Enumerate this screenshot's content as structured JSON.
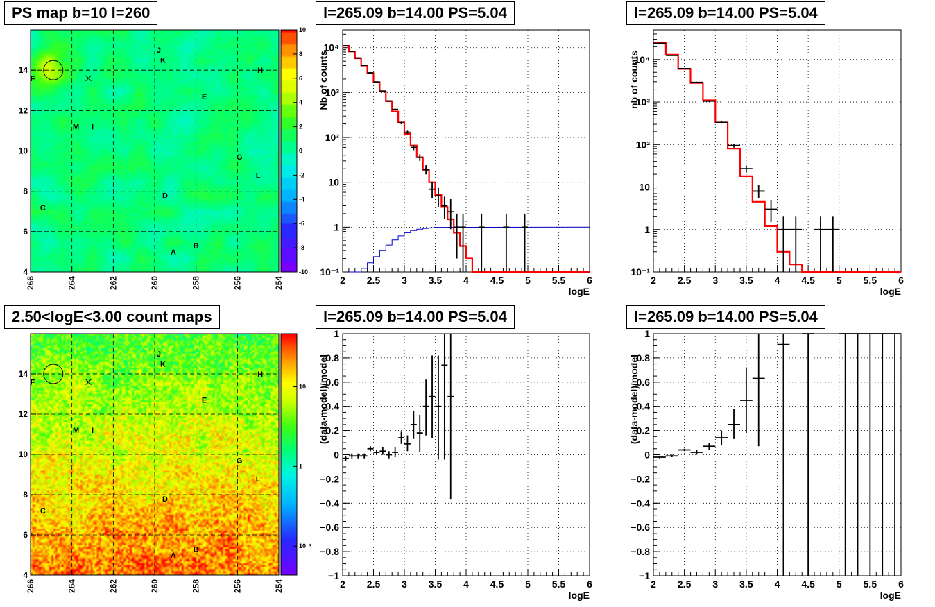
{
  "titles": {
    "map_top": "PS map b=10 l=260",
    "map_bottom": "2.50<logE<3.00 count maps",
    "spectrum_left": "l=265.09 b=14.00 PS=5.04",
    "spectrum_right": "l=265.09 b=14.00 PS=5.04",
    "residual_left": "l=265.09 b=14.00 PS=5.04",
    "residual_right": "l=265.09 b=14.00 PS=5.04"
  },
  "chart_data": [
    {
      "id": "ps_map",
      "type": "heatmap",
      "x_ticks": [
        "266",
        "264",
        "262",
        "260",
        "258",
        "256",
        "254"
      ],
      "y_ticks": [
        "4",
        "6",
        "8",
        "10",
        "12",
        "14"
      ],
      "xlim": [
        266,
        254
      ],
      "ylim": [
        4,
        16
      ],
      "z_range": [
        -10,
        10
      ],
      "colorbar_ticks": [
        "10",
        "8",
        "6",
        "4",
        "2",
        "0",
        "-2",
        "-4",
        "-6",
        "-8",
        "-10"
      ],
      "base_value": 0.3,
      "labels": [
        {
          "t": "J",
          "l": 259.8,
          "b": 15.0
        },
        {
          "t": "K",
          "l": 259.6,
          "b": 14.5
        },
        {
          "t": "H",
          "l": 254.9,
          "b": 14.0
        },
        {
          "t": "F",
          "l": 265.9,
          "b": 13.6
        },
        {
          "t": "E",
          "l": 257.6,
          "b": 12.7
        },
        {
          "t": "M",
          "l": 263.8,
          "b": 11.2
        },
        {
          "t": "I",
          "l": 263.0,
          "b": 11.2
        },
        {
          "t": "G",
          "l": 255.9,
          "b": 9.7
        },
        {
          "t": "L",
          "l": 255.0,
          "b": 8.8
        },
        {
          "t": "D",
          "l": 259.5,
          "b": 7.8
        },
        {
          "t": "C",
          "l": 265.4,
          "b": 7.2
        },
        {
          "t": "B",
          "l": 258.0,
          "b": 5.3
        },
        {
          "t": "A",
          "l": 259.1,
          "b": 5.0
        }
      ],
      "circle": {
        "l": 264.9,
        "b": 14.0
      },
      "cross": {
        "l": 263.2,
        "b": 13.6
      }
    },
    {
      "id": "count_map",
      "type": "heatmap",
      "x_ticks": [
        "266",
        "264",
        "262",
        "260",
        "258",
        "256",
        "254"
      ],
      "y_ticks": [
        "4",
        "6",
        "8",
        "10",
        "12",
        "14"
      ],
      "xlim": [
        266,
        254
      ],
      "ylim": [
        4,
        16
      ],
      "colorbar_ticks": [
        "10",
        "1",
        "10⁻¹"
      ],
      "labels": [
        {
          "t": "J",
          "l": 259.8,
          "b": 15.0
        },
        {
          "t": "K",
          "l": 259.6,
          "b": 14.5
        },
        {
          "t": "H",
          "l": 254.9,
          "b": 14.0
        },
        {
          "t": "F",
          "l": 265.9,
          "b": 13.6
        },
        {
          "t": "E",
          "l": 257.6,
          "b": 12.7
        },
        {
          "t": "M",
          "l": 263.8,
          "b": 11.2
        },
        {
          "t": "I",
          "l": 263.0,
          "b": 11.2
        },
        {
          "t": "G",
          "l": 255.9,
          "b": 9.7
        },
        {
          "t": "L",
          "l": 255.0,
          "b": 8.8
        },
        {
          "t": "D",
          "l": 259.5,
          "b": 7.8
        },
        {
          "t": "C",
          "l": 265.4,
          "b": 7.2
        },
        {
          "t": "B",
          "l": 258.0,
          "b": 5.3
        },
        {
          "t": "A",
          "l": 259.1,
          "b": 5.0
        }
      ],
      "circle": {
        "l": 264.9,
        "b": 14.0
      },
      "cross": {
        "l": 263.2,
        "b": 13.6
      }
    },
    {
      "id": "spectrum_left",
      "type": "line",
      "xlabel": "logE",
      "ylabel": "Nb of counts",
      "xlim": [
        2,
        6
      ],
      "ylim": [
        0.1,
        25000
      ],
      "log_y": true,
      "x_ticks": [
        "2",
        "2.5",
        "3",
        "3.5",
        "4",
        "4.5",
        "5",
        "5.5",
        "6"
      ],
      "y_ticks": [
        {
          "v": 0.1,
          "t": "10⁻¹"
        },
        {
          "v": 1,
          "t": "1"
        },
        {
          "v": 10,
          "t": "10"
        },
        {
          "v": 100,
          "t": "10²"
        },
        {
          "v": 1000,
          "t": "10³"
        },
        {
          "v": 10000,
          "t": "10⁴"
        }
      ],
      "bin_width": 0.1,
      "model": [
        {
          "x": 2.05,
          "y": 11000
        },
        {
          "x": 2.15,
          "y": 8200
        },
        {
          "x": 2.25,
          "y": 5800
        },
        {
          "x": 2.35,
          "y": 4000
        },
        {
          "x": 2.45,
          "y": 2700
        },
        {
          "x": 2.55,
          "y": 1700
        },
        {
          "x": 2.65,
          "y": 1050
        },
        {
          "x": 2.75,
          "y": 640
        },
        {
          "x": 2.85,
          "y": 380
        },
        {
          "x": 2.95,
          "y": 215
        },
        {
          "x": 3.05,
          "y": 120
        },
        {
          "x": 3.15,
          "y": 66
        },
        {
          "x": 3.25,
          "y": 36
        },
        {
          "x": 3.35,
          "y": 19
        },
        {
          "x": 3.45,
          "y": 10
        },
        {
          "x": 3.55,
          "y": 5.2
        },
        {
          "x": 3.65,
          "y": 2.8
        },
        {
          "x": 3.75,
          "y": 1.5
        },
        {
          "x": 3.85,
          "y": 0.75
        },
        {
          "x": 3.95,
          "y": 0.38
        },
        {
          "x": 4.05,
          "y": 0.2
        },
        {
          "x": 4.15,
          "y": 0.1
        },
        {
          "x": 4.25,
          "y": 0.1
        }
      ],
      "acceptance": [
        {
          "x": 2.15,
          "y": 0.1
        },
        {
          "x": 2.25,
          "y": 0.1
        },
        {
          "x": 2.35,
          "y": 0.12
        },
        {
          "x": 2.45,
          "y": 0.16
        },
        {
          "x": 2.55,
          "y": 0.22
        },
        {
          "x": 2.65,
          "y": 0.3
        },
        {
          "x": 2.75,
          "y": 0.4
        },
        {
          "x": 2.85,
          "y": 0.52
        },
        {
          "x": 2.95,
          "y": 0.64
        },
        {
          "x": 3.05,
          "y": 0.75
        },
        {
          "x": 3.15,
          "y": 0.84
        },
        {
          "x": 3.25,
          "y": 0.9
        },
        {
          "x": 3.35,
          "y": 0.94
        },
        {
          "x": 3.45,
          "y": 0.97
        },
        {
          "x": 3.55,
          "y": 0.99
        },
        {
          "x": 6.0,
          "y": 1.0
        }
      ],
      "data": [
        {
          "x": 2.05,
          "y": 11000,
          "lo": 10800,
          "hi": 11200
        },
        {
          "x": 2.15,
          "y": 8300,
          "lo": 8100,
          "hi": 8500
        },
        {
          "x": 2.25,
          "y": 5900,
          "lo": 5750,
          "hi": 6050
        },
        {
          "x": 2.35,
          "y": 4050,
          "lo": 3950,
          "hi": 4150
        },
        {
          "x": 2.45,
          "y": 2750,
          "lo": 2650,
          "hi": 2850
        },
        {
          "x": 2.55,
          "y": 1720,
          "lo": 1680,
          "hi": 1760
        },
        {
          "x": 2.65,
          "y": 1080,
          "lo": 1050,
          "hi": 1110
        },
        {
          "x": 2.75,
          "y": 650,
          "lo": 630,
          "hi": 670
        },
        {
          "x": 2.85,
          "y": 420,
          "lo": 400,
          "hi": 440
        },
        {
          "x": 2.95,
          "y": 210,
          "lo": 196,
          "hi": 224
        },
        {
          "x": 3.05,
          "y": 130,
          "lo": 119,
          "hi": 141
        },
        {
          "x": 3.15,
          "y": 60,
          "lo": 52,
          "hi": 68
        },
        {
          "x": 3.25,
          "y": 36,
          "lo": 30,
          "hi": 42
        },
        {
          "x": 3.35,
          "y": 19,
          "lo": 15,
          "hi": 24
        },
        {
          "x": 3.45,
          "y": 7,
          "lo": 4.5,
          "hi": 10
        },
        {
          "x": 3.55,
          "y": 5,
          "lo": 2.8,
          "hi": 7.5
        },
        {
          "x": 3.65,
          "y": 3,
          "lo": 1.5,
          "hi": 4.8
        },
        {
          "x": 3.75,
          "y": 2.2,
          "lo": 0.9,
          "hi": 4.2
        },
        {
          "x": 3.85,
          "y": 1,
          "lo": 0.2,
          "hi": 2
        },
        {
          "x": 3.95,
          "y": 1,
          "lo": 0.1,
          "hi": 2
        },
        {
          "x": 4.25,
          "y": 1,
          "lo": 0.1,
          "hi": 2
        },
        {
          "x": 4.65,
          "y": 1,
          "lo": 0.1,
          "hi": 2
        },
        {
          "x": 4.95,
          "y": 1,
          "lo": 0.1,
          "hi": 2
        }
      ]
    },
    {
      "id": "spectrum_right",
      "type": "line",
      "xlabel": "logE",
      "ylabel": "nb of counts",
      "xlim": [
        2,
        6
      ],
      "ylim": [
        0.1,
        50000
      ],
      "log_y": true,
      "x_ticks": [
        "2",
        "2.5",
        "3",
        "3.5",
        "4",
        "4.5",
        "5",
        "5.5",
        "6"
      ],
      "y_ticks": [
        {
          "v": 0.1,
          "t": "10⁻¹"
        },
        {
          "v": 1,
          "t": "1"
        },
        {
          "v": 10,
          "t": "10"
        },
        {
          "v": 100,
          "t": "10²"
        },
        {
          "v": 1000,
          "t": "10³"
        },
        {
          "v": 10000,
          "t": "10⁴"
        }
      ],
      "bin_width": 0.2,
      "model": [
        {
          "x": 2.1,
          "y": 25000
        },
        {
          "x": 2.3,
          "y": 13000
        },
        {
          "x": 2.5,
          "y": 6000
        },
        {
          "x": 2.7,
          "y": 2800
        },
        {
          "x": 2.9,
          "y": 1100
        },
        {
          "x": 3.1,
          "y": 330
        },
        {
          "x": 3.3,
          "y": 80
        },
        {
          "x": 3.5,
          "y": 18
        },
        {
          "x": 3.7,
          "y": 4.5
        },
        {
          "x": 3.9,
          "y": 1.2
        },
        {
          "x": 4.1,
          "y": 0.3
        },
        {
          "x": 4.3,
          "y": 0.15
        },
        {
          "x": 4.5,
          "y": 0.1
        }
      ],
      "data": [
        {
          "x": 2.1,
          "y": 24000,
          "lo": 23500,
          "hi": 24500
        },
        {
          "x": 2.3,
          "y": 12500,
          "lo": 12200,
          "hi": 12800
        },
        {
          "x": 2.5,
          "y": 6100,
          "lo": 5900,
          "hi": 6300
        },
        {
          "x": 2.7,
          "y": 2900,
          "lo": 2800,
          "hi": 3000
        },
        {
          "x": 2.9,
          "y": 1050,
          "lo": 1000,
          "hi": 1100
        },
        {
          "x": 3.1,
          "y": 330,
          "lo": 310,
          "hi": 350
        },
        {
          "x": 3.3,
          "y": 95,
          "lo": 85,
          "hi": 105
        },
        {
          "x": 3.5,
          "y": 27,
          "lo": 22,
          "hi": 32
        },
        {
          "x": 3.7,
          "y": 8,
          "lo": 5.5,
          "hi": 11
        },
        {
          "x": 3.9,
          "y": 3,
          "lo": 1.5,
          "hi": 4.8
        },
        {
          "x": 4.1,
          "y": 1,
          "lo": 0.1,
          "hi": 2
        },
        {
          "x": 4.3,
          "y": 1,
          "lo": 0.1,
          "hi": 2
        },
        {
          "x": 4.7,
          "y": 1,
          "lo": 0.1,
          "hi": 2
        },
        {
          "x": 4.9,
          "y": 1,
          "lo": 0.1,
          "hi": 2
        }
      ]
    },
    {
      "id": "residual_left",
      "type": "scatter",
      "xlabel": "logE",
      "ylabel": "(data-model)/model",
      "xlim": [
        2,
        6
      ],
      "ylim": [
        -1,
        1
      ],
      "x_ticks": [
        "2",
        "2.5",
        "3",
        "3.5",
        "4",
        "4.5",
        "5",
        "5.5",
        "6"
      ],
      "y_ticks": [
        "−1",
        "−0.8",
        "−0.6",
        "−0.4",
        "−0.2",
        "0",
        "0.2",
        "0.4",
        "0.6",
        "0.8",
        "1"
      ],
      "bin_width": 0.1,
      "data": [
        {
          "x": 2.05,
          "y": -0.03,
          "lo": -0.05,
          "hi": -0.01
        },
        {
          "x": 2.15,
          "y": -0.01,
          "lo": -0.03,
          "hi": 0.01
        },
        {
          "x": 2.25,
          "y": -0.01,
          "lo": -0.03,
          "hi": 0.01
        },
        {
          "x": 2.35,
          "y": -0.01,
          "lo": -0.03,
          "hi": 0.01
        },
        {
          "x": 2.45,
          "y": 0.05,
          "lo": 0.03,
          "hi": 0.07
        },
        {
          "x": 2.55,
          "y": 0.02,
          "lo": 0.0,
          "hi": 0.04
        },
        {
          "x": 2.65,
          "y": 0.03,
          "lo": 0.0,
          "hi": 0.06
        },
        {
          "x": 2.75,
          "y": 0.0,
          "lo": -0.03,
          "hi": 0.03
        },
        {
          "x": 2.85,
          "y": 0.02,
          "lo": -0.02,
          "hi": 0.06
        },
        {
          "x": 2.95,
          "y": 0.14,
          "lo": 0.09,
          "hi": 0.19
        },
        {
          "x": 3.05,
          "y": 0.09,
          "lo": 0.03,
          "hi": 0.16
        },
        {
          "x": 3.15,
          "y": 0.25,
          "lo": 0.13,
          "hi": 0.36
        },
        {
          "x": 3.25,
          "y": 0.18,
          "lo": 0.02,
          "hi": 0.33
        },
        {
          "x": 3.35,
          "y": 0.4,
          "lo": 0.16,
          "hi": 0.62
        },
        {
          "x": 3.45,
          "y": 0.48,
          "lo": 0.14,
          "hi": 0.82
        },
        {
          "x": 3.55,
          "y": 0.4,
          "lo": -0.04,
          "hi": 0.82
        },
        {
          "x": 3.65,
          "y": 0.74,
          "lo": -0.04,
          "hi": 1.0
        },
        {
          "x": 3.75,
          "y": 0.48,
          "lo": -0.37,
          "hi": 1.0
        }
      ]
    },
    {
      "id": "residual_right",
      "type": "scatter",
      "xlabel": "logE",
      "ylabel": "(data-model)/model",
      "xlim": [
        2,
        6
      ],
      "ylim": [
        -1,
        1
      ],
      "x_ticks": [
        "2",
        "2.5",
        "3",
        "3.5",
        "4",
        "4.5",
        "5",
        "5.5",
        "6"
      ],
      "y_ticks": [
        "−1",
        "−0.8",
        "−0.6",
        "−0.4",
        "−0.2",
        "0",
        "0.2",
        "0.4",
        "0.6",
        "0.8",
        "1"
      ],
      "bin_width": 0.2,
      "data": [
        {
          "x": 2.1,
          "y": -0.02,
          "lo": -0.03,
          "hi": -0.01
        },
        {
          "x": 2.3,
          "y": -0.01,
          "lo": -0.02,
          "hi": 0.0
        },
        {
          "x": 2.5,
          "y": 0.04,
          "lo": 0.03,
          "hi": 0.05
        },
        {
          "x": 2.7,
          "y": 0.02,
          "lo": 0.0,
          "hi": 0.04
        },
        {
          "x": 2.9,
          "y": 0.07,
          "lo": 0.04,
          "hi": 0.1
        },
        {
          "x": 3.1,
          "y": 0.14,
          "lo": 0.08,
          "hi": 0.2
        },
        {
          "x": 3.3,
          "y": 0.25,
          "lo": 0.13,
          "hi": 0.38
        },
        {
          "x": 3.5,
          "y": 0.45,
          "lo": 0.18,
          "hi": 0.72
        },
        {
          "x": 3.7,
          "y": 0.63,
          "lo": 0.07,
          "hi": 1.0
        },
        {
          "x": 4.1,
          "y": 0.91,
          "lo": -1.0,
          "hi": 1.0
        },
        {
          "x": 4.5,
          "y": 1.0,
          "lo": -1.0,
          "hi": 1.0
        },
        {
          "x": 5.1,
          "y": 1.0,
          "lo": -1.0,
          "hi": 1.0
        },
        {
          "x": 5.3,
          "y": 1.0,
          "lo": -1.0,
          "hi": 1.0
        },
        {
          "x": 5.5,
          "y": 1.0,
          "lo": -1.0,
          "hi": 1.0
        },
        {
          "x": 5.7,
          "y": 1.0,
          "lo": -1.0,
          "hi": 1.0
        },
        {
          "x": 5.9,
          "y": 1.0,
          "lo": -1.0,
          "hi": 1.0
        }
      ]
    }
  ]
}
